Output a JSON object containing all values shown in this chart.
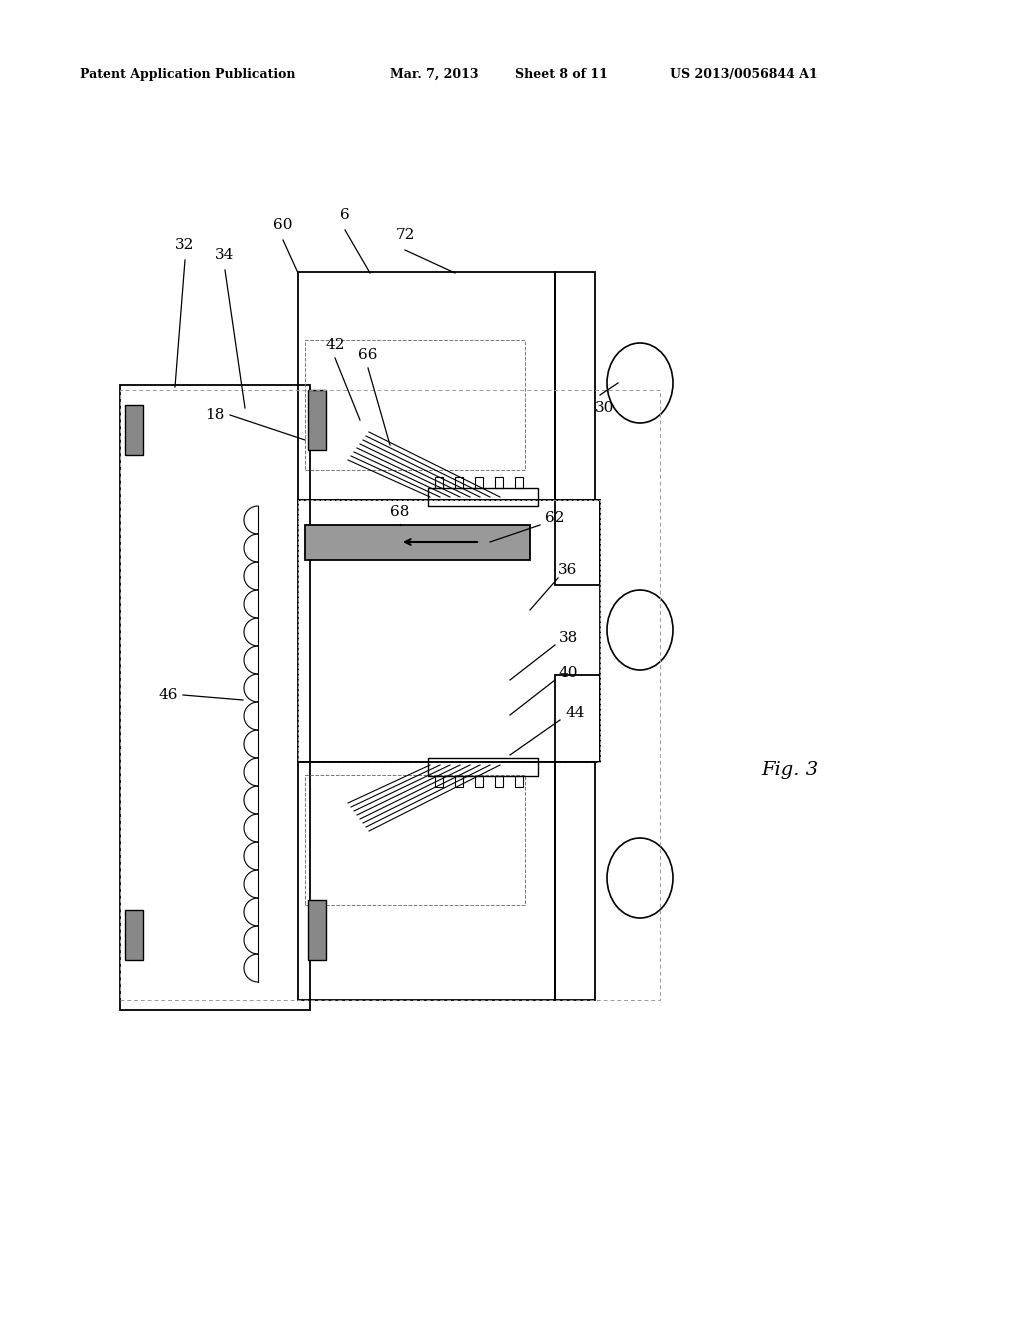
{
  "bg_color": "#ffffff",
  "lc": "#000000",
  "gray_fill": "#999999",
  "dark_fill": "#555555",
  "light_fill": "#cccccc",
  "pad_fill": "#888888",
  "header_text": "Patent Application Publication",
  "header_date": "Mar. 7, 2013",
  "header_sheet": "Sheet 8 of 11",
  "header_patent": "US 2013/0056844 A1",
  "fig_label": "Fig. 3"
}
